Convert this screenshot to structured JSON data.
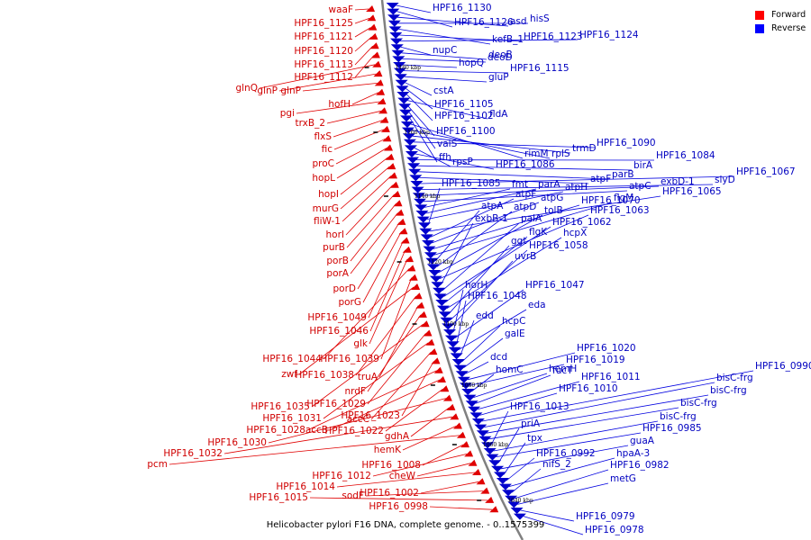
{
  "caption": "Helicobacter pylori F16 DNA, complete genome. - 0..1575399",
  "legend": [
    {
      "label": "Forward",
      "color": "#ff0000"
    },
    {
      "label": "Reverse",
      "color": "#0000ff"
    }
  ],
  "ticks": [
    "1180 kbp",
    "1160 kbp",
    "1140 kbp",
    "1120 kbp",
    "1100 kbp",
    "1080 kbp",
    "1060 kbp",
    "1040 kbp"
  ],
  "colors": {
    "forward": "#e00000",
    "reverse": "#0000cc",
    "backbone": "#808080"
  },
  "forward_genes": [
    "waaF",
    "HPF16_1125",
    "HPF16_1121",
    "HPF16_1120",
    "HPF16_1113",
    "HPF16_1112",
    "glnQ",
    "glnP",
    "glnP",
    "hofH",
    "pgi",
    "trxB_2",
    "flxS",
    "fic",
    "proC",
    "hopL",
    "hopI",
    "murG",
    "fliW-1",
    "horI",
    "purB",
    "porB",
    "porA",
    "porD",
    "porG",
    "HPF16_1049",
    "HPF16_1046",
    "glk",
    "HPF16_1044",
    "HPF16_1039",
    "zwf",
    "HPF16_1038",
    "truA",
    "nrdF",
    "HPF16_1035",
    "HPF16_1029",
    "HPF16_1031",
    "accC",
    "HPF16_1023",
    "HPF16_1028",
    "accB",
    "HPF16_1022",
    "HPF16_1030",
    "gdhA",
    "HPF16_1032",
    "hemK",
    "pcm",
    "HPF16_1008",
    "HPF16_1012",
    "cheW",
    "HPF16_1014",
    "HPF16_1002",
    "sodF",
    "HPF16_1015",
    "HPF16_0998"
  ],
  "reverse_genes": [
    "HPF16_1130",
    "HPF16_1126",
    "asd",
    "hisS",
    "kefB_1",
    "HPF16_1123",
    "HPF16_1124",
    "nupC",
    "deoB",
    "deoD",
    "hopQ",
    "HPF16_1115",
    "gluP",
    "cstA",
    "HPF16_1105",
    "HPF16_1102",
    "fldA",
    "HPF16_1100",
    "valS",
    "ffh",
    "rimM",
    "rplS",
    "trmD",
    "HPF16_1090",
    "rpsP",
    "HPF16_1086",
    "HPF16_1084",
    "birA",
    "parB",
    "atpF",
    "HPF16_1067",
    "slyD",
    "exbD-1",
    "atpC",
    "fmt",
    "parA",
    "atpH",
    "HPF16_1085",
    "HPF16_1065",
    "atpF",
    "atpG",
    "HPF16_1070",
    "flgM",
    "atpA",
    "atpD",
    "tolB",
    "HPF16_1063",
    "exbB-1",
    "palA",
    "HPF16_1062",
    "flgK",
    "hcpX",
    "ggt",
    "HPF16_1058",
    "uvrB",
    "horH",
    "HPF16_1047",
    "HPF16_1048",
    "eda",
    "edd",
    "hcpC",
    "galE",
    "dcd",
    "HPF16_1020",
    "HPF16_1019",
    "homC",
    "hemH",
    "fucT",
    "HPF16_1011",
    "HPF16_1010",
    "HPF16_0990",
    "bisC-frg",
    "bisC-frg",
    "bisC-frg",
    "HPF16_1013",
    "bisC-frg",
    "HPF16_0985",
    "priA",
    "guaA",
    "tpx",
    "HPF16_0992",
    "hpaA-3",
    "nifS_2",
    "HPF16_0982",
    "metG",
    "HPF16_0979",
    "HPF16_0978"
  ]
}
